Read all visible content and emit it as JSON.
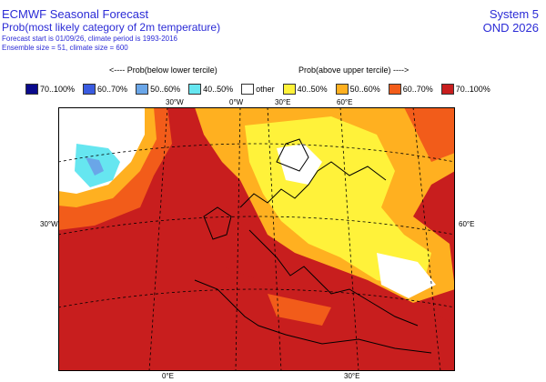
{
  "header": {
    "title": "ECMWF Seasonal Forecast",
    "subtitle": "Prob(most likely category of 2m temperature)",
    "line3": "Forecast start is 01/09/26, climate period is 1993-2016",
    "line4": "Ensemble size = 51, climate size = 600",
    "system": "System 5",
    "period": "OND 2026"
  },
  "legend": {
    "below_label": "<---- Prob(below lower tercile)",
    "above_label": "Prob(above upper tercile) ---->",
    "items": [
      {
        "label": "70..100%",
        "color": "#0a0a8c"
      },
      {
        "label": "60..70%",
        "color": "#3a5be0"
      },
      {
        "label": "50..60%",
        "color": "#6aa6e8"
      },
      {
        "label": "40..50%",
        "color": "#66e6f0"
      },
      {
        "label": "other",
        "color": "#ffffff"
      },
      {
        "label": "40..50%",
        "color": "#fff23a"
      },
      {
        "label": "50..60%",
        "color": "#ffb020"
      },
      {
        "label": "60..70%",
        "color": "#f25c1a"
      },
      {
        "label": "70..100%",
        "color": "#c81e1e"
      }
    ]
  },
  "map": {
    "lon_labels_top": [
      "30°W",
      "0°W",
      "30°E",
      "60°E"
    ],
    "lon_labels_bottom": [
      "0°E",
      "30°E"
    ],
    "lat_labels": [
      "30°W",
      "60°E"
    ]
  }
}
